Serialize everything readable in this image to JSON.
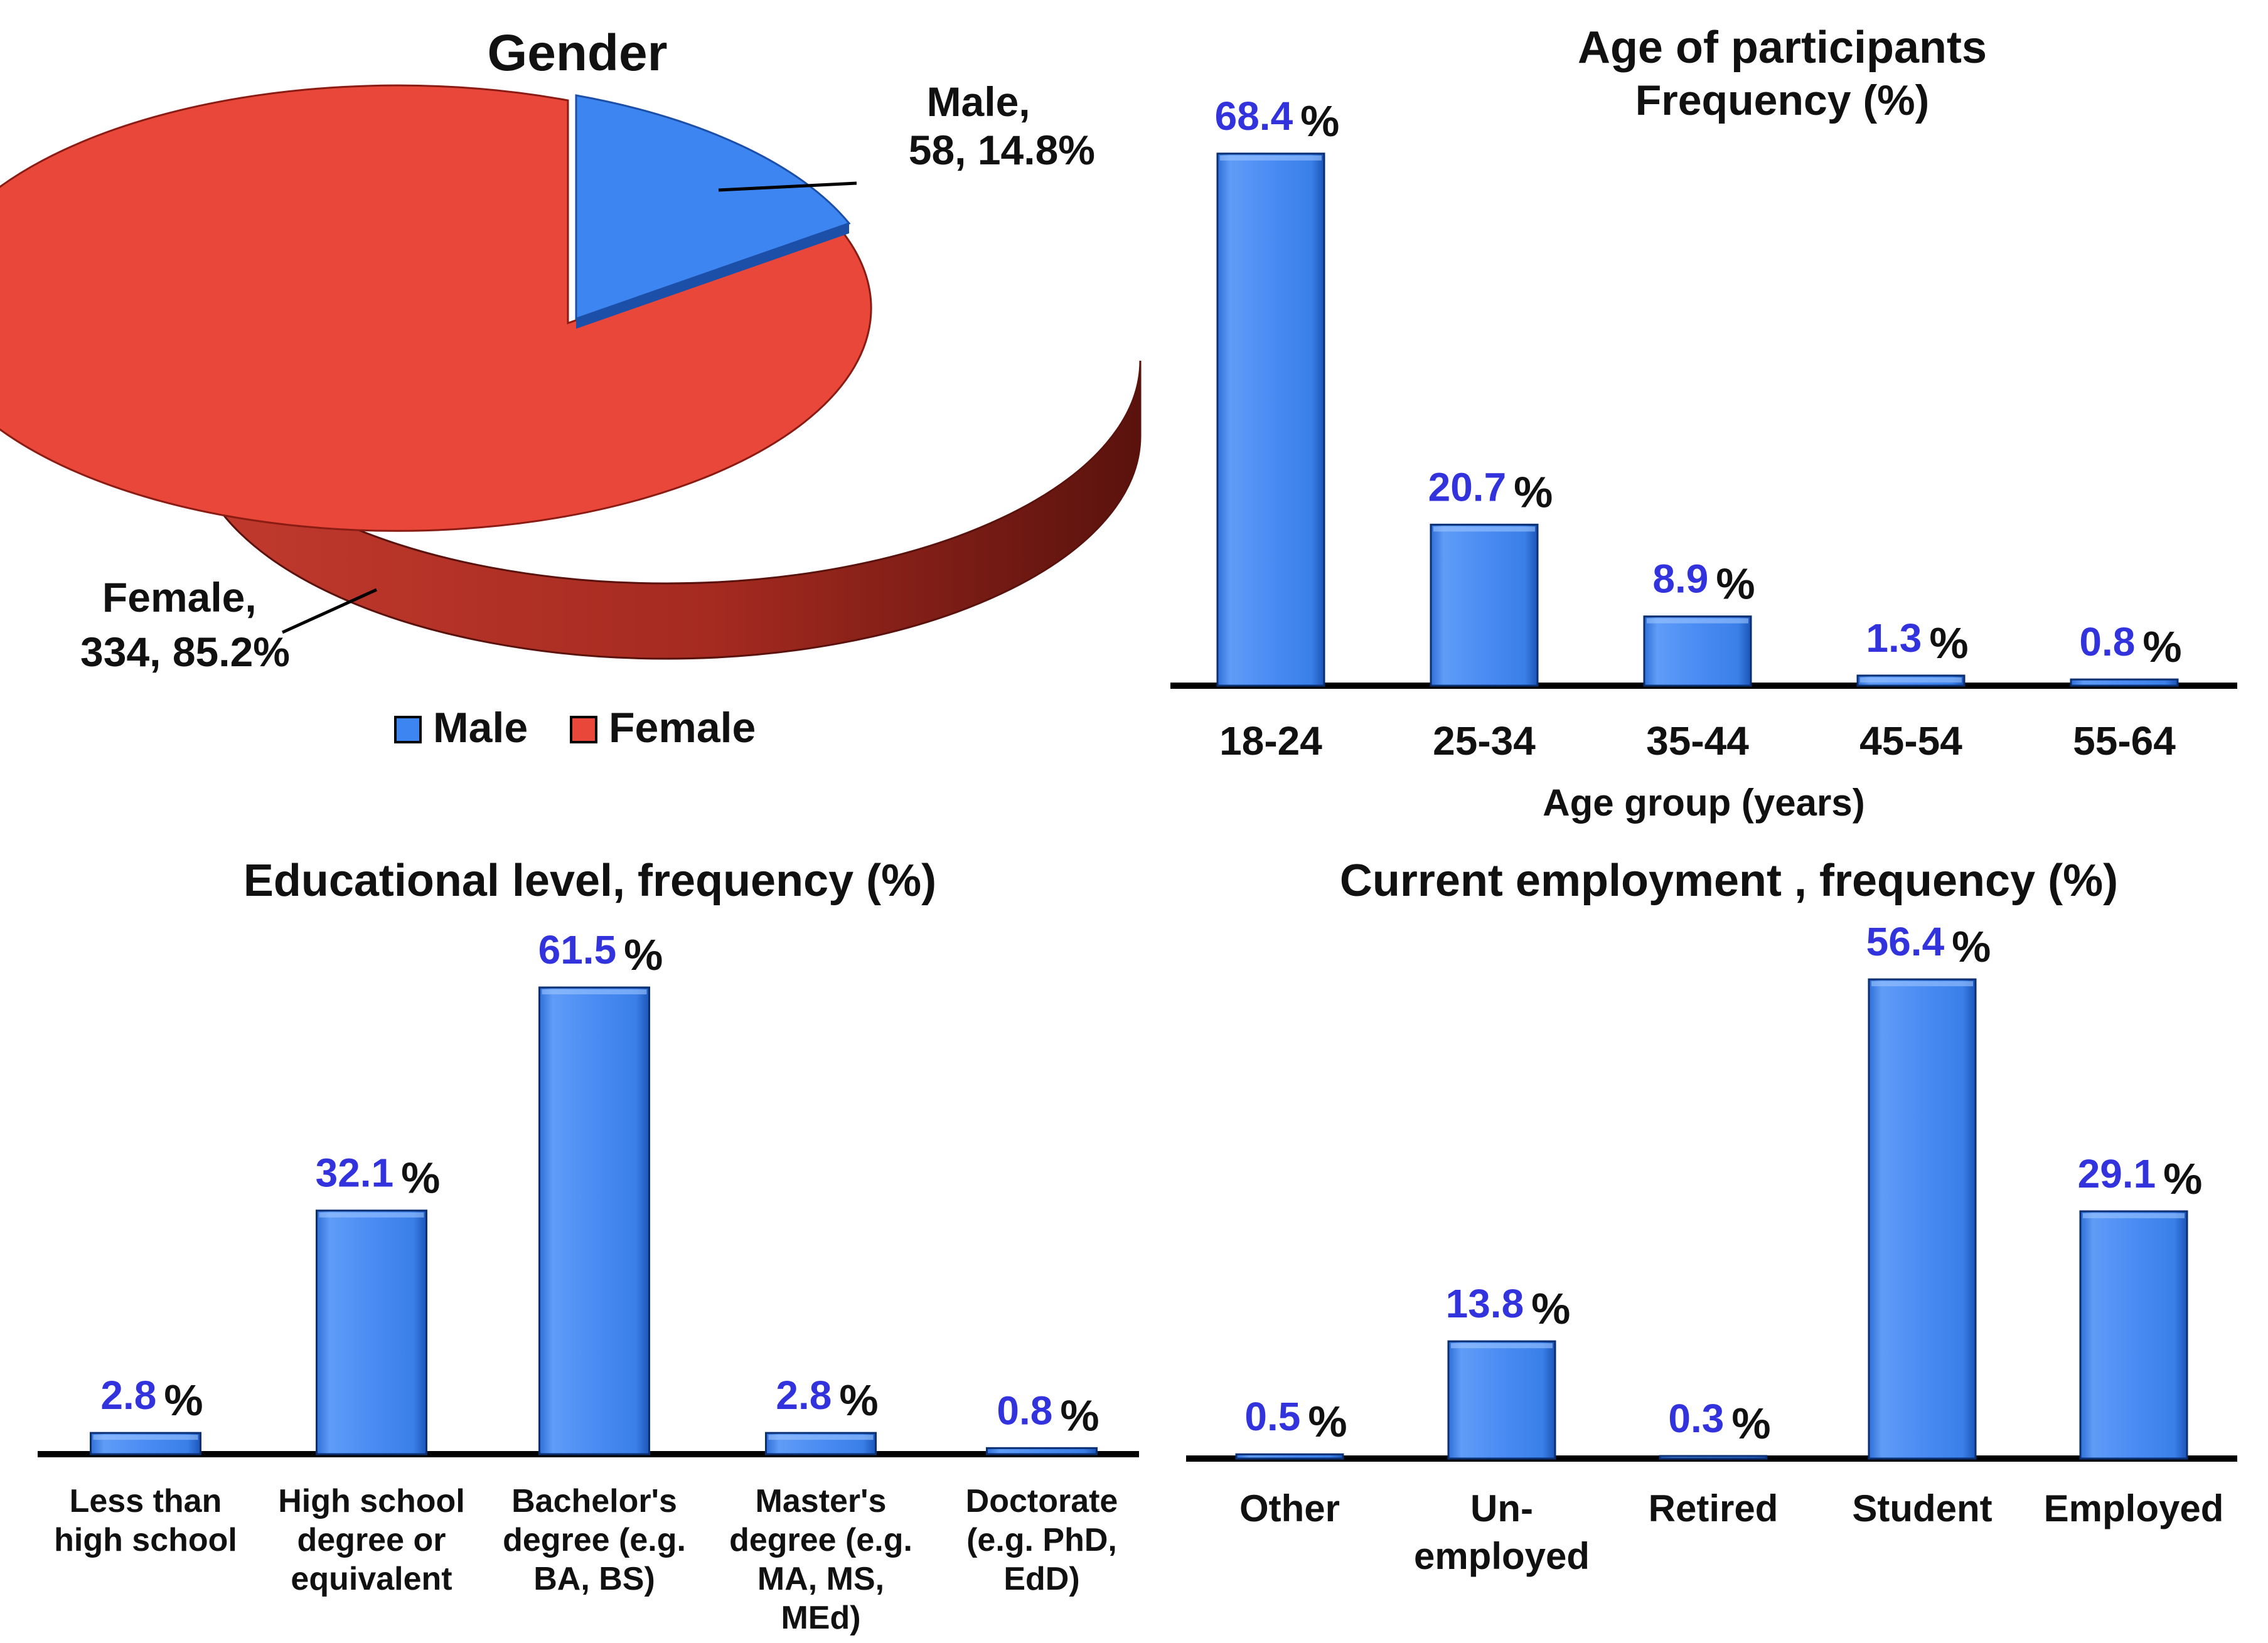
{
  "colors": {
    "bar": "#3d85f0",
    "bar_light": "#8fbcff",
    "bar_dark": "#1a5cc7",
    "value_label": "#3333dd",
    "text": "#111111",
    "female": "#e8473a",
    "female_dark": "#7a1a14",
    "male": "#3d85f0",
    "male_dark": "#1c4fa8"
  },
  "chart_data": [
    {
      "id": "gender",
      "type": "pie",
      "title": "Gender",
      "slices": [
        {
          "label": "Male",
          "value": 58,
          "percent": 14.8,
          "callout": [
            "Male,",
            "58, 14.8%"
          ]
        },
        {
          "label": "Female",
          "value": 334,
          "percent": 85.2,
          "callout": [
            "Female,",
            "334, 85.2%"
          ]
        }
      ],
      "legend": {
        "placement": "bottom",
        "entries": [
          "Male",
          "Female"
        ]
      }
    },
    {
      "id": "age",
      "type": "bar",
      "title": "Age of participants",
      "subtitle": "Frequency (%)",
      "xlabel": "Age group (years)",
      "categories": [
        [
          "18-24"
        ],
        [
          "25-34"
        ],
        [
          "35-44"
        ],
        [
          "45-54"
        ],
        [
          "55-64"
        ]
      ],
      "values": [
        68.4,
        20.7,
        8.9,
        1.3,
        0.8
      ],
      "value_suffix": "%",
      "ylim": [
        0,
        70
      ]
    },
    {
      "id": "education",
      "type": "bar",
      "title": "Educational level, frequency (%)",
      "categories": [
        [
          "Less than",
          "high school"
        ],
        [
          "High school",
          "degree or",
          "equivalent"
        ],
        [
          "Bachelor's",
          "degree (e.g.",
          "BA, BS)"
        ],
        [
          "Master's",
          "degree (e.g.",
          "MA, MS,",
          "MEd)"
        ],
        [
          "Doctorate",
          "(e.g. PhD,",
          "EdD)"
        ]
      ],
      "values": [
        2.8,
        32.1,
        61.5,
        2.8,
        0.8
      ],
      "value_suffix": "%",
      "ylim": [
        0,
        62
      ]
    },
    {
      "id": "employment",
      "type": "bar",
      "title": "Current employment , frequency (%)",
      "categories": [
        [
          "Other"
        ],
        [
          "Un-",
          "employed"
        ],
        [
          "Retired"
        ],
        [
          "Student"
        ],
        [
          "Employed"
        ]
      ],
      "values": [
        0.5,
        13.8,
        0.3,
        56.4,
        29.1
      ],
      "value_suffix": "%",
      "ylim": [
        0,
        57
      ]
    }
  ]
}
